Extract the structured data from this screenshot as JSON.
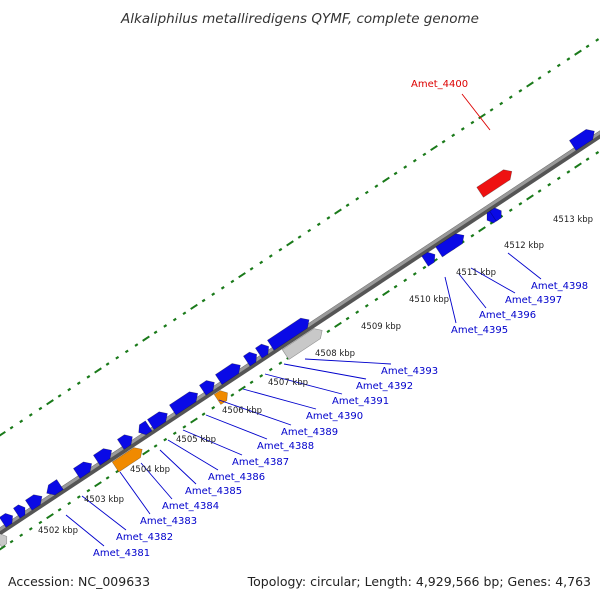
{
  "title": "Alkaliphilus metalliredigens QYMF, complete genome",
  "footer": {
    "accession": "Accession: NC_009633",
    "stats": "Topology: circular; Length: 4,929,566 bp; Genes: 4,763"
  },
  "colors": {
    "background": "#ffffff",
    "backbone": "#808080",
    "tick": "#1a7a1a",
    "gene_default": "#0a0ae6",
    "gene_highlight": "#ee1111",
    "gene_orange": "#f08a00",
    "gene_grey": "#c8c8c8",
    "label_default": "#0000cc",
    "label_highlight": "#dd0000"
  },
  "kbp_labels": [
    "4502 kbp",
    "4503 kbp",
    "4504 kbp",
    "4505 kbp",
    "4506 kbp",
    "4507 kbp",
    "4508 kbp",
    "4509 kbp",
    "4510 kbp",
    "4511 kbp",
    "4512 kbp",
    "4513 kbp"
  ],
  "gene_labels": [
    {
      "text": "Amet_4381",
      "color": "blue"
    },
    {
      "text": "Amet_4382",
      "color": "blue"
    },
    {
      "text": "Amet_4383",
      "color": "blue"
    },
    {
      "text": "Amet_4384",
      "color": "blue"
    },
    {
      "text": "Amet_4385",
      "color": "blue"
    },
    {
      "text": "Amet_4386",
      "color": "blue"
    },
    {
      "text": "Amet_4387",
      "color": "blue"
    },
    {
      "text": "Amet_4388",
      "color": "blue"
    },
    {
      "text": "Amet_4389",
      "color": "blue"
    },
    {
      "text": "Amet_4390",
      "color": "blue"
    },
    {
      "text": "Amet_4391",
      "color": "blue"
    },
    {
      "text": "Amet_4392",
      "color": "blue"
    },
    {
      "text": "Amet_4393",
      "color": "blue"
    },
    {
      "text": "Amet_4395",
      "color": "blue"
    },
    {
      "text": "Amet_4396",
      "color": "blue"
    },
    {
      "text": "Amet_4397",
      "color": "blue"
    },
    {
      "text": "Amet_4398",
      "color": "blue"
    },
    {
      "text": "Amet_4400",
      "color": "red"
    }
  ]
}
